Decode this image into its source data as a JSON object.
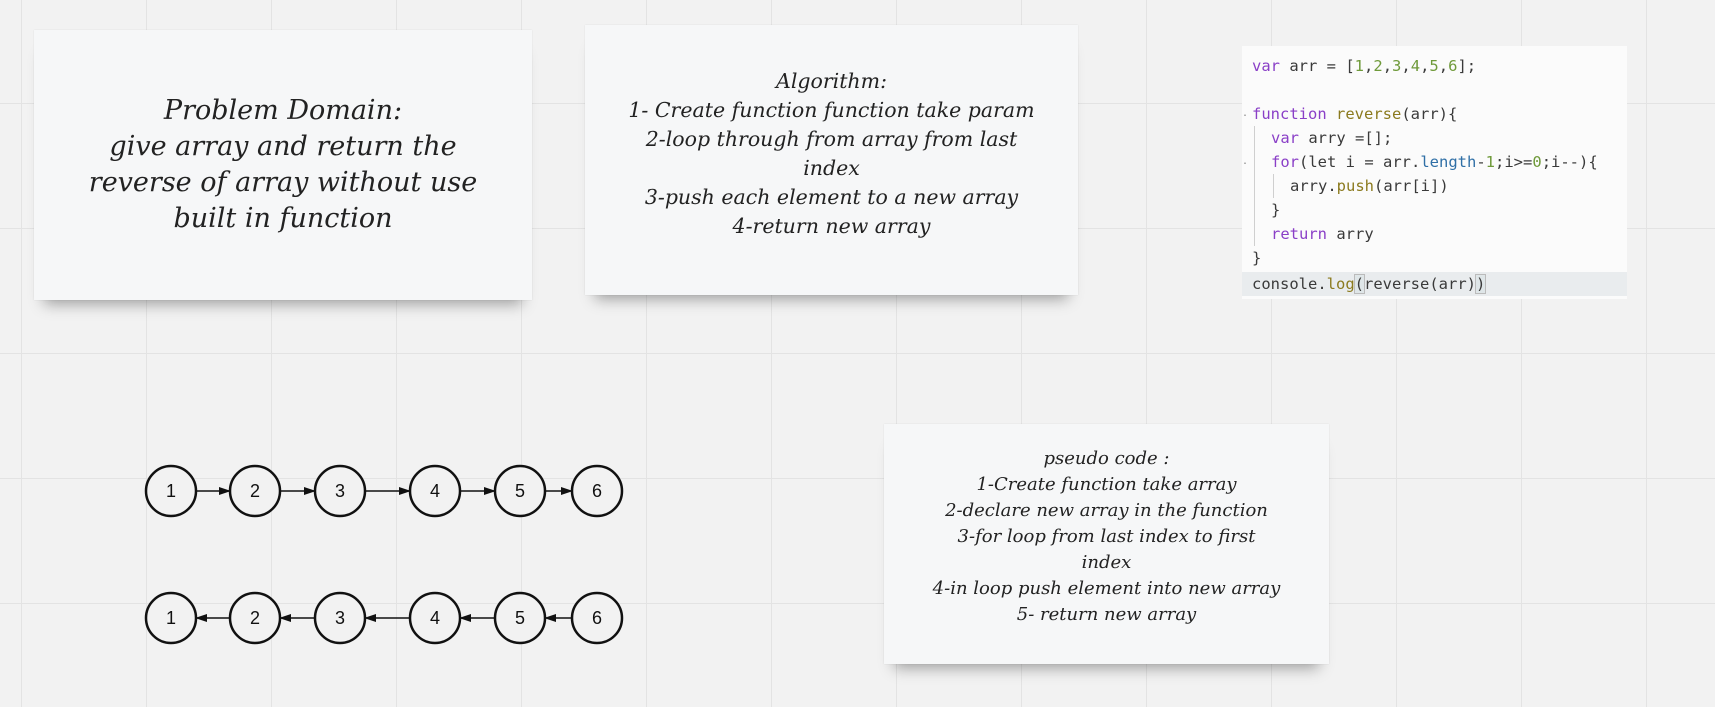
{
  "problem_note": {
    "lines": [
      "Problem Domain:",
      "give  array and return the",
      "reverse of array without use",
      "built in function"
    ]
  },
  "algorithm_note": {
    "lines": [
      "Algorithm:",
      "1- Create function function take param",
      "2-loop through from array from last",
      "index",
      "3-push each element to a new array",
      "4-return new array"
    ]
  },
  "pseudo_note": {
    "lines": [
      "pseudo code :",
      "1-Create function take array",
      "2-declare new array in the function",
      "3-for loop from last index to first",
      "index",
      "4-in loop push element into new array",
      "5- return new array"
    ]
  },
  "code": {
    "line1": [
      "var",
      " arr = [",
      "1",
      ",",
      "2",
      ",",
      "3",
      ",",
      "4",
      ",",
      "5",
      ",",
      "6",
      "];"
    ],
    "line3": [
      "function",
      " ",
      "reverse",
      "(arr){"
    ],
    "line4": [
      "var",
      " arry =[];"
    ],
    "line5": [
      "for",
      "(let i = arr.",
      "length",
      "-",
      "1",
      ";i>=",
      "0",
      ";i--){"
    ],
    "line6": [
      "arry.",
      "push",
      "(arr[i])"
    ],
    "line7": "}",
    "line8": [
      "return",
      " arry"
    ],
    "line9": "}",
    "line10": [
      "console.",
      "log",
      "(",
      "reverse(arr)",
      ")"
    ]
  },
  "forward_list": {
    "values": [
      "1",
      "2",
      "3",
      "4",
      "5",
      "6"
    ],
    "direction": "right"
  },
  "reversed_list": {
    "values": [
      "1",
      "2",
      "3",
      "4",
      "5",
      "6"
    ],
    "direction": "left"
  },
  "colors": {
    "keyword": "#8a3fc7",
    "function": "#8b7a1e",
    "number": "#6f9a3a",
    "property": "#2f6fa6"
  }
}
